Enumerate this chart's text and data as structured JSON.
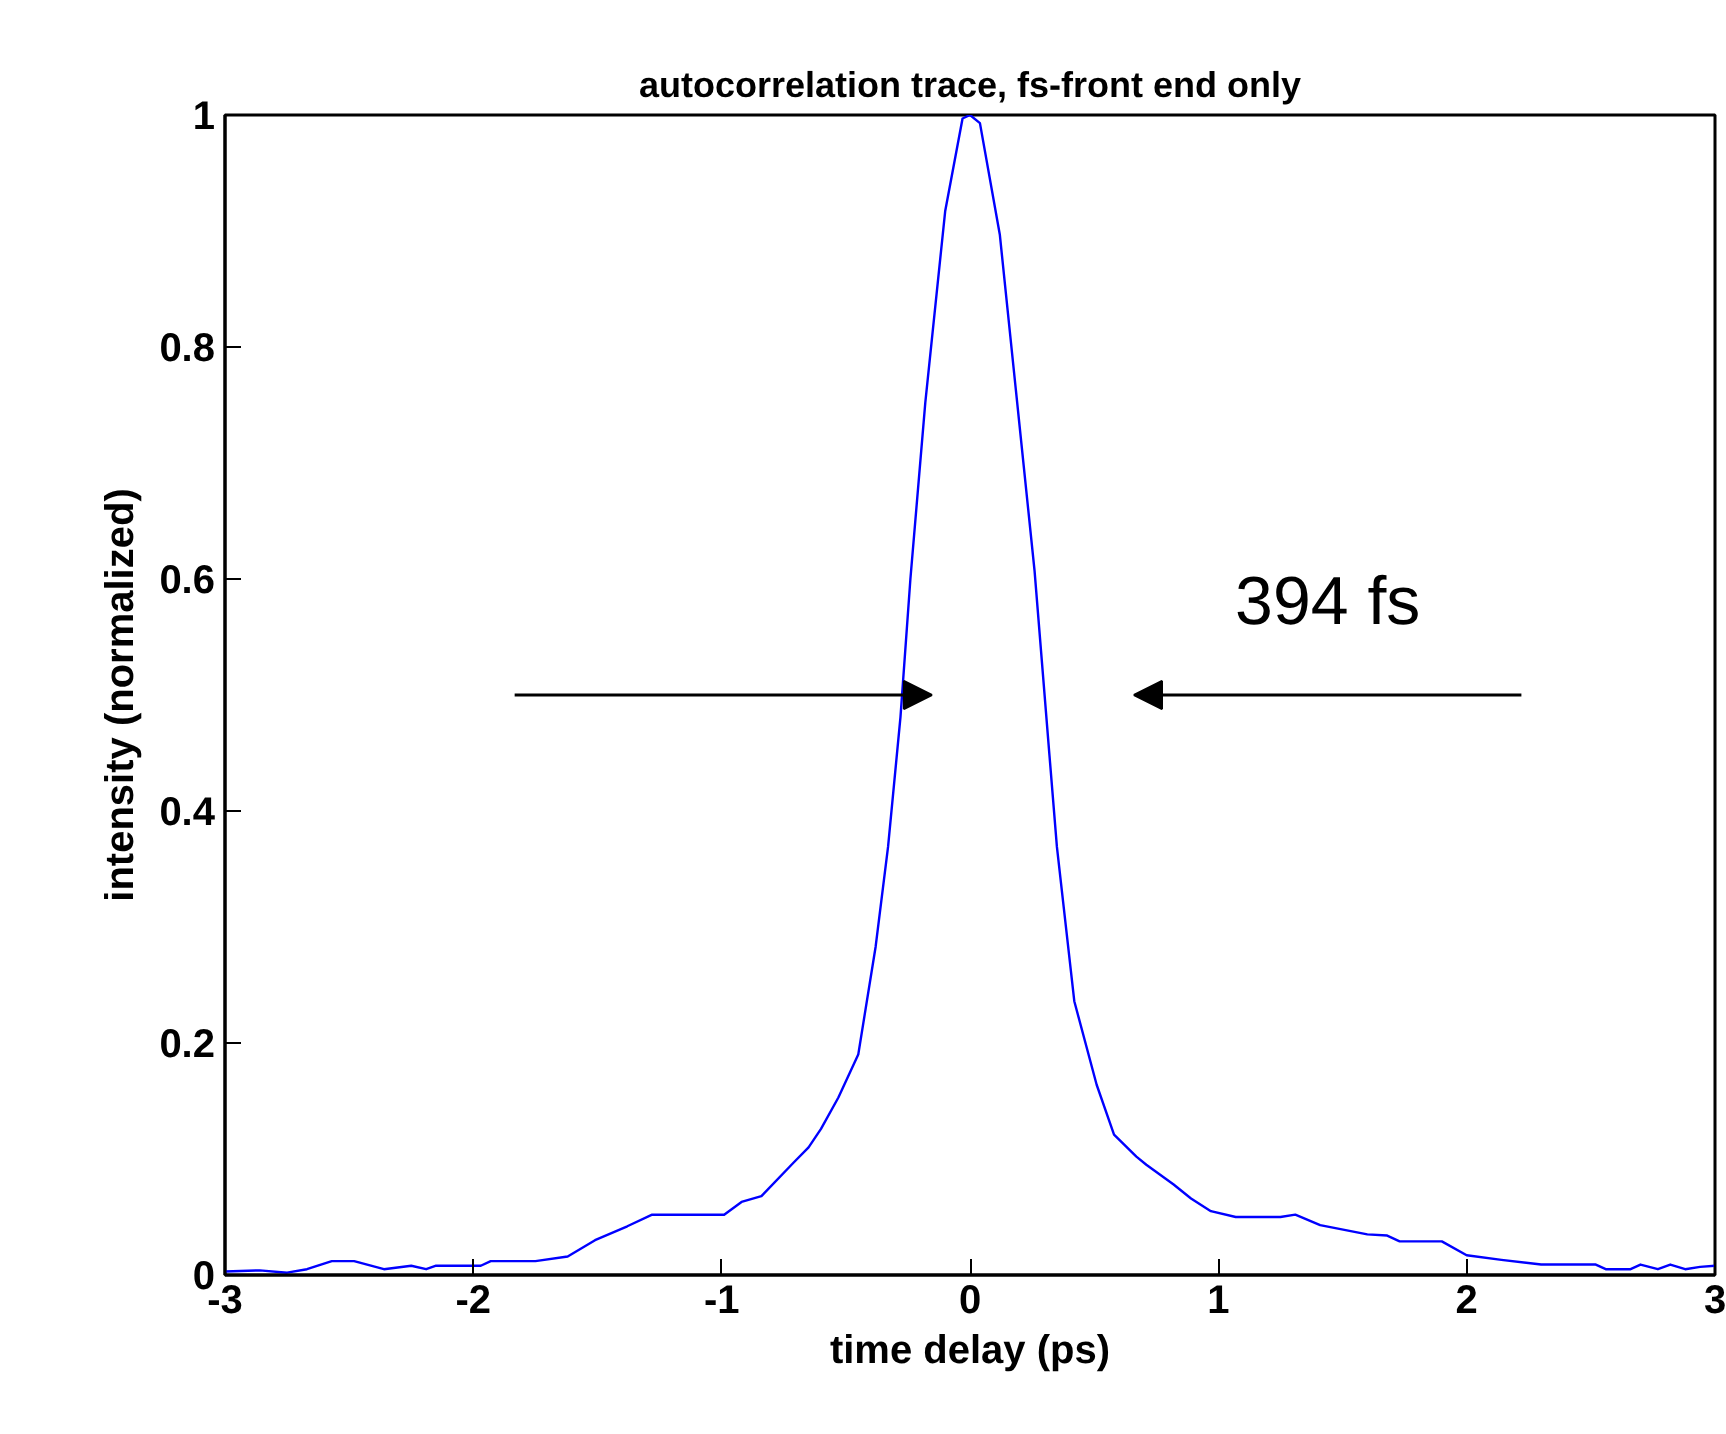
{
  "chart_data": {
    "type": "line",
    "title": "autocorrelation trace, fs-front end only",
    "xlabel": "time delay (ps)",
    "ylabel": "intensity (normalized)",
    "xlim": [
      -3,
      3
    ],
    "ylim": [
      0,
      1
    ],
    "xticks": [
      -3,
      -2,
      -1,
      0,
      1,
      2,
      3
    ],
    "yticks": [
      0,
      0.2,
      0.4,
      0.6,
      0.8,
      1
    ],
    "grid": false,
    "marker": "none",
    "line_style": "solid",
    "annotations": [
      "394 fs"
    ],
    "series": [
      {
        "color": "#0000ff",
        "x": [
          -3,
          -2.86,
          -2.75,
          -2.67,
          -2.57,
          -2.48,
          -2.36,
          -2.25,
          -2.19,
          -2.15,
          -1.97,
          -1.93,
          -1.75,
          -1.62,
          -1.51,
          -1.38,
          -1.28,
          -0.99,
          -0.92,
          -0.84,
          -0.71,
          -0.65,
          -0.6,
          -0.53,
          -0.45,
          -0.38,
          -0.33,
          -0.28,
          -0.24,
          -0.18,
          -0.1,
          -0.03,
          0,
          0.04,
          0.12,
          0.19,
          0.26,
          0.32,
          0.35,
          0.42,
          0.51,
          0.58,
          0.67,
          0.71,
          0.82,
          0.89,
          0.97,
          1.07,
          1.25,
          1.31,
          1.41,
          1.6,
          1.68,
          1.73,
          1.9,
          2.0,
          2.14,
          2.3,
          2.52,
          2.56,
          2.66,
          2.7,
          2.77,
          2.82,
          2.88,
          2.94,
          3.0
        ],
        "values": [
          0.003,
          0.004,
          0.002,
          0.005,
          0.012,
          0.012,
          0.005,
          0.008,
          0.005,
          0.008,
          0.008,
          0.012,
          0.012,
          0.016,
          0.03,
          0.042,
          0.052,
          0.052,
          0.063,
          0.068,
          0.097,
          0.11,
          0.126,
          0.153,
          0.19,
          0.283,
          0.369,
          0.481,
          0.6,
          0.752,
          0.917,
          0.997,
          1.0,
          0.993,
          0.897,
          0.752,
          0.607,
          0.448,
          0.369,
          0.236,
          0.164,
          0.121,
          0.102,
          0.095,
          0.078,
          0.066,
          0.055,
          0.05,
          0.05,
          0.052,
          0.043,
          0.035,
          0.034,
          0.029,
          0.029,
          0.017,
          0.013,
          0.009,
          0.009,
          0.005,
          0.005,
          0.009,
          0.005,
          0.009,
          0.005,
          0.007,
          0.008
        ]
      }
    ]
  }
}
